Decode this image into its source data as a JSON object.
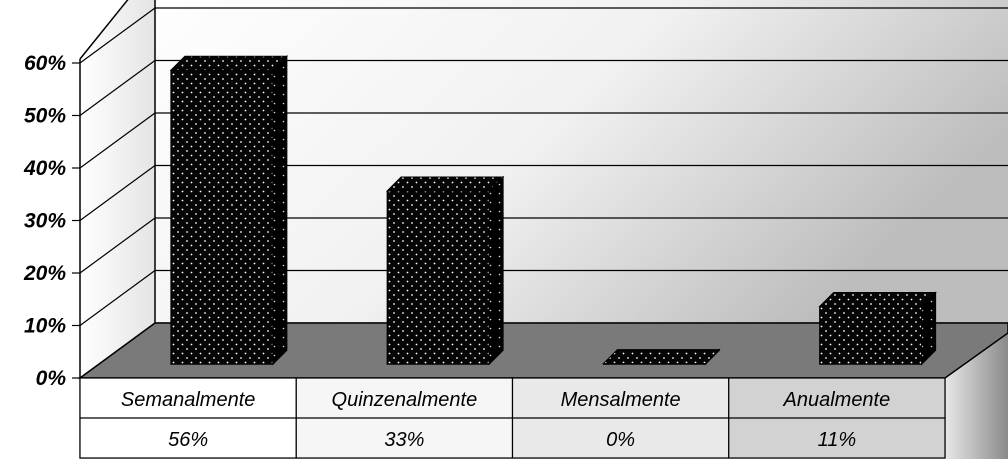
{
  "chart_data": {
    "type": "bar",
    "style": "3d-column-with-data-table",
    "categories": [
      "Semanalmente",
      "Quinzenalmente",
      "Mensalmente",
      "Anualmente"
    ],
    "values": [
      56,
      33,
      0,
      11
    ],
    "value_labels": [
      "56%",
      "33%",
      "0%",
      "11%"
    ],
    "y_ticks": [
      "0%",
      "10%",
      "20%",
      "30%",
      "40%",
      "50%",
      "60%"
    ],
    "ylim": [
      0,
      60
    ],
    "grid": true,
    "legend": "none",
    "bar_color": "#000000",
    "bar_pattern": "white dots",
    "floor_color": "#7a7a7a",
    "wall_gradient": [
      "#ffffff",
      "#cfcfcf"
    ],
    "title": "",
    "xlabel": "",
    "ylabel": ""
  }
}
